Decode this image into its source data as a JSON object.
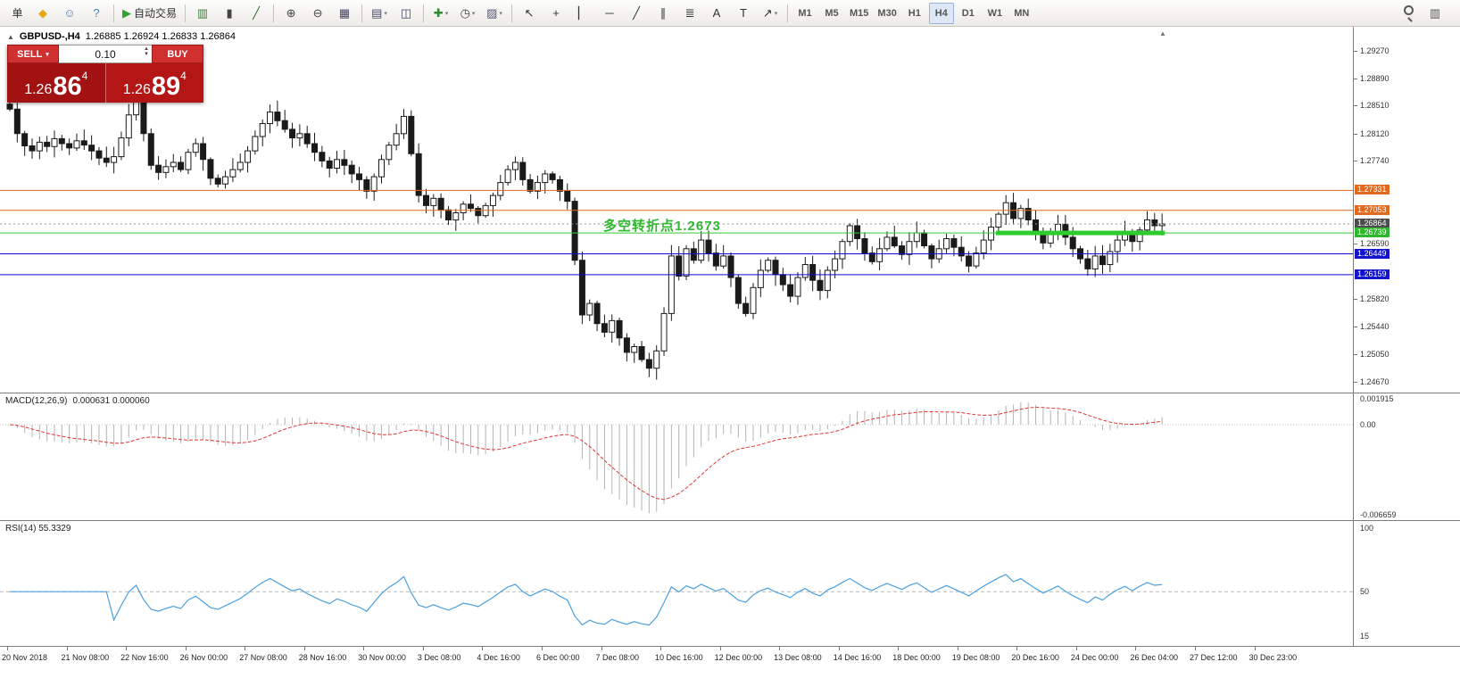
{
  "palette": {
    "sell_red": "#a31212",
    "buy_red": "#b41616",
    "button_red": "#d03030",
    "orange_level": "#e06a1f",
    "green_level": "#32cd32",
    "blue_level": "#0a0adc",
    "bid_badge": "#4d4d4d",
    "macd_signal": "#e03636",
    "macd_hist": "#b4b4b4",
    "rsi_line": "#4aa0e0",
    "annotation_green": "#2db82d"
  },
  "toolbar": {
    "groups": [
      {
        "sep": true,
        "items": [
          {
            "name": "new-order-button",
            "text": "单"
          },
          {
            "name": "favorites-icon",
            "glyph": "◆",
            "color": "#e7a917"
          },
          {
            "name": "community-icon",
            "glyph": "☺",
            "color": "#4a7fc1"
          },
          {
            "name": "help-icon",
            "glyph": "?",
            "color": "#4a7fc1"
          }
        ]
      },
      {
        "sep": true,
        "items": [
          {
            "name": "autotrading-button",
            "glyph": "▶",
            "color": "#2fa32f",
            "text": "自动交易"
          }
        ]
      },
      {
        "sep": true,
        "items": [
          {
            "name": "bar-chart-icon",
            "glyph": "▥",
            "color": "#3c7a3c"
          },
          {
            "name": "candlestick-chart-icon",
            "glyph": "▮",
            "color": "#444"
          },
          {
            "name": "line-chart-icon",
            "glyph": "╱",
            "color": "#2e6e2e"
          }
        ]
      },
      {
        "sep": true,
        "items": [
          {
            "name": "zoom-in-button",
            "glyph": "⊕",
            "color": "#444"
          },
          {
            "name": "zoom-out-button",
            "glyph": "⊖",
            "color": "#444"
          },
          {
            "name": "tile-windows-icon",
            "glyph": "▦",
            "color": "#446"
          }
        ]
      },
      {
        "sep": true,
        "items": [
          {
            "name": "arrange-charts-icon",
            "glyph": "▤",
            "color": "#446",
            "dropdown": true
          },
          {
            "name": "profiles-icon",
            "glyph": "◫",
            "color": "#446"
          }
        ]
      },
      {
        "sep": true,
        "items": [
          {
            "name": "indicators-button",
            "glyph": "✚",
            "color": "#2e8b2e",
            "dropdown": true
          },
          {
            "name": "periods-button",
            "glyph": "◷",
            "color": "#444",
            "dropdown": true
          },
          {
            "name": "templates-button",
            "glyph": "▨",
            "color": "#557",
            "dropdown": true
          }
        ]
      },
      {
        "sep": true,
        "items": [
          {
            "name": "cursor-tool",
            "glyph": "↖",
            "color": "#333"
          },
          {
            "name": "crosshair-tool",
            "glyph": "+",
            "color": "#333"
          },
          {
            "name": "vertical-line-tool",
            "glyph": "▏",
            "color": "#333"
          },
          {
            "name": "horizontal-line-tool",
            "glyph": "─",
            "color": "#333"
          },
          {
            "name": "trendline-tool",
            "glyph": "╱",
            "color": "#333"
          },
          {
            "name": "channel-tool",
            "glyph": "∥",
            "color": "#333"
          },
          {
            "name": "fibonacci-tool",
            "glyph": "≣",
            "color": "#333"
          },
          {
            "name": "text-tool",
            "glyph": "A",
            "color": "#333"
          },
          {
            "name": "label-tool",
            "glyph": "T",
            "color": "#333"
          },
          {
            "name": "arrows-tool",
            "glyph": "↗",
            "color": "#333",
            "dropdown": true
          }
        ]
      },
      {
        "sep": false,
        "items": [
          {
            "name": "timeframe-m1",
            "text": "M1",
            "tf": true
          },
          {
            "name": "timeframe-m5",
            "text": "M5",
            "tf": true
          },
          {
            "name": "timeframe-m15",
            "text": "M15",
            "tf": true
          },
          {
            "name": "timeframe-m30",
            "text": "M30",
            "tf": true
          },
          {
            "name": "timeframe-h1",
            "text": "H1",
            "tf": true
          },
          {
            "name": "timeframe-h4",
            "text": "H4",
            "tf": true,
            "active": true
          },
          {
            "name": "timeframe-d1",
            "text": "D1",
            "tf": true
          },
          {
            "name": "timeframe-w1",
            "text": "W1",
            "tf": true
          },
          {
            "name": "timeframe-mn",
            "text": "MN",
            "tf": true
          }
        ]
      },
      {
        "sep": false,
        "right": true,
        "items": [
          {
            "name": "search-icon",
            "type": "magnifier"
          },
          {
            "name": "data-window-icon",
            "glyph": "▥",
            "color": "#555"
          }
        ]
      }
    ]
  },
  "chart": {
    "symbol": "GBPUSD-,H4",
    "ohlc": "1.26885 1.26924 1.26833 1.26864",
    "toggle_icon": "▲",
    "trade_panel": {
      "sell_label": "SELL",
      "buy_label": "BUY",
      "volume": "0.10",
      "sell_price": {
        "base": "1.26",
        "big": "86",
        "pip": "4"
      },
      "buy_price": {
        "base": "1.26",
        "big": "89",
        "pip": "4"
      }
    },
    "annotation": {
      "text": "多空转折点1.2673",
      "color": "#2db82d"
    },
    "levels": [
      {
        "name": "resistance-1",
        "price": 1.27331,
        "color": "#e06a1f",
        "width": 1
      },
      {
        "name": "resistance-2",
        "price": 1.27053,
        "color": "#e06a1f",
        "width": 1
      },
      {
        "name": "pivot-green",
        "price": 1.26739,
        "color": "#32cd32",
        "width": 1
      },
      {
        "name": "support-1",
        "price": 1.26449,
        "color": "#0a0adc",
        "width": 1
      },
      {
        "name": "support-2",
        "price": 1.26159,
        "color": "#0a0adc",
        "width": 1
      }
    ],
    "bid_line": {
      "price": 1.26864,
      "color": "#9a9a9a"
    },
    "support_zone": {
      "price": 1.26739,
      "from": 133,
      "to": 155,
      "color": "#2ecc2e",
      "thickness": 5
    },
    "scale_plain": [
      "1.29270",
      "1.28890",
      "1.28510",
      "1.28120",
      "1.27740",
      "1.26590",
      "1.25820",
      "1.25440",
      "1.25050",
      "1.24670"
    ],
    "scale_badges": [
      {
        "value": "1.27331",
        "bg": "#e06a1f"
      },
      {
        "value": "1.27053",
        "bg": "#e06a1f"
      },
      {
        "value": "1.26864",
        "bg": "#4d4d4d"
      },
      {
        "value": "1.26739",
        "bg": "#2eb82e"
      },
      {
        "value": "1.26449",
        "bg": "#1414cc"
      },
      {
        "value": "1.26159",
        "bg": "#1414cc"
      }
    ],
    "chart_data": {
      "type": "candlestick",
      "timeframe": "H4",
      "symbol": "GBPUSD",
      "ylim": [
        1.2467,
        1.2927
      ],
      "closes": [
        1.2846,
        1.2812,
        1.2795,
        1.2788,
        1.28,
        1.2794,
        1.2805,
        1.2798,
        1.2792,
        1.2802,
        1.2796,
        1.2788,
        1.2778,
        1.2772,
        1.278,
        1.2806,
        1.2838,
        1.2858,
        1.2812,
        1.2768,
        1.2758,
        1.2766,
        1.2772,
        1.2762,
        1.2786,
        1.2798,
        1.2776,
        1.275,
        1.2742,
        1.2752,
        1.2762,
        1.2772,
        1.2788,
        1.2808,
        1.2826,
        1.2842,
        1.283,
        1.2818,
        1.2806,
        1.2812,
        1.2798,
        1.2786,
        1.2774,
        1.2764,
        1.2776,
        1.2768,
        1.2756,
        1.2748,
        1.2732,
        1.2752,
        1.2776,
        1.2796,
        1.2812,
        1.2836,
        1.2784,
        1.2726,
        1.2712,
        1.2722,
        1.2706,
        1.2692,
        1.2702,
        1.2714,
        1.2708,
        1.2698,
        1.2712,
        1.2726,
        1.2744,
        1.2762,
        1.2772,
        1.2748,
        1.2732,
        1.2744,
        1.2756,
        1.2748,
        1.2732,
        1.2718,
        1.2636,
        1.256,
        1.2576,
        1.2548,
        1.2536,
        1.2552,
        1.2528,
        1.2508,
        1.2516,
        1.2498,
        1.2486,
        1.251,
        1.2562,
        1.2642,
        1.2614,
        1.2652,
        1.2636,
        1.2664,
        1.2646,
        1.2628,
        1.2642,
        1.2612,
        1.2576,
        1.2562,
        1.2598,
        1.2622,
        1.2636,
        1.2616,
        1.2602,
        1.2586,
        1.2612,
        1.263,
        1.2608,
        1.2594,
        1.2622,
        1.2638,
        1.2662,
        1.2684,
        1.2666,
        1.2646,
        1.2634,
        1.2652,
        1.2668,
        1.2656,
        1.2644,
        1.2662,
        1.2674,
        1.2656,
        1.2638,
        1.2652,
        1.2666,
        1.2654,
        1.2642,
        1.2628,
        1.2646,
        1.2664,
        1.2682,
        1.27,
        1.2716,
        1.2694,
        1.2708,
        1.2692,
        1.2676,
        1.266,
        1.2672,
        1.2686,
        1.2668,
        1.2652,
        1.2638,
        1.2624,
        1.2642,
        1.263,
        1.2648,
        1.2664,
        1.2676,
        1.2662,
        1.2678,
        1.2692,
        1.2684,
        1.26864
      ]
    }
  },
  "macd": {
    "label": "MACD(12,26,9)",
    "values": "0.000631 0.000060",
    "params": [
      12,
      26,
      9
    ],
    "ylim": [
      -0.006659,
      0.001915
    ],
    "scale": [
      "0.001915",
      "0.00",
      "-0.006659"
    ]
  },
  "rsi": {
    "label": "RSI(14) 55.3329",
    "period": 14,
    "level": 50,
    "ylim": [
      10,
      103
    ],
    "scale": [
      {
        "v": 100,
        "t": "100"
      },
      {
        "v": 50,
        "t": "50"
      },
      {
        "v": 15,
        "t": "15"
      }
    ]
  },
  "time_axis": {
    "labels": [
      "20 Nov 2018",
      "21 Nov 08:00",
      "22 Nov 16:00",
      "26 Nov 00:00",
      "27 Nov 08:00",
      "28 Nov 16:00",
      "30 Nov 00:00",
      "3 Dec 08:00",
      "4 Dec 16:00",
      "6 Dec 00:00",
      "7 Dec 08:00",
      "10 Dec 16:00",
      "12 Dec 00:00",
      "13 Dec 08:00",
      "14 Dec 16:00",
      "18 Dec 00:00",
      "19 Dec 08:00",
      "20 Dec 16:00",
      "24 Dec 00:00",
      "26 Dec 04:00",
      "27 Dec 12:00",
      "30 Dec 23:00"
    ]
  }
}
